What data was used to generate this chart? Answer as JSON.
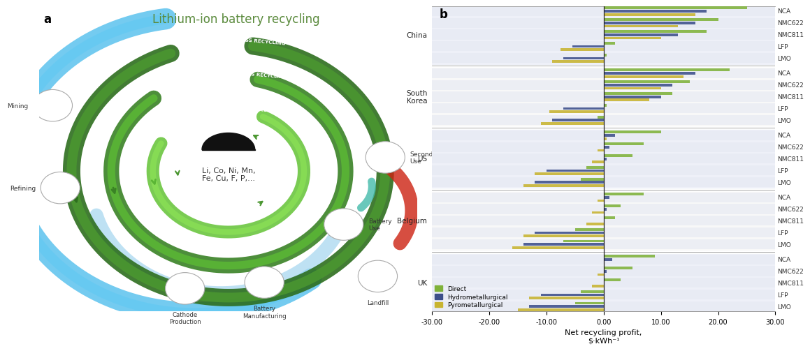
{
  "title_a": "Lithium-ion battery recycling",
  "regions": [
    "China",
    "South\nKorea",
    "US",
    "Belgium",
    "UK"
  ],
  "cathode_types": [
    "NCA",
    "NMC622",
    "NMC811",
    "LFP",
    "LMO"
  ],
  "colors": {
    "direct": "#7fb23a",
    "hydro": "#3d4f8a",
    "pyro": "#c8b430"
  },
  "data": {
    "China": {
      "NCA": {
        "direct": 25.0,
        "hydro": 18.0,
        "pyro": 16.0
      },
      "NMC622": {
        "direct": 20.0,
        "hydro": 16.0,
        "pyro": 13.0
      },
      "NMC811": {
        "direct": 18.0,
        "hydro": 13.0,
        "pyro": 10.0
      },
      "LFP": {
        "direct": 2.0,
        "hydro": -5.5,
        "pyro": -7.5
      },
      "LMO": {
        "direct": 0.5,
        "hydro": -7.0,
        "pyro": -9.0
      }
    },
    "South\nKorea": {
      "NCA": {
        "direct": 22.0,
        "hydro": 16.0,
        "pyro": 14.0
      },
      "NMC622": {
        "direct": 15.0,
        "hydro": 12.0,
        "pyro": 10.0
      },
      "NMC811": {
        "direct": 12.0,
        "hydro": 10.0,
        "pyro": 8.0
      },
      "LFP": {
        "direct": 0.5,
        "hydro": -7.0,
        "pyro": -9.5
      },
      "LMO": {
        "direct": -1.0,
        "hydro": -9.0,
        "pyro": -11.0
      }
    },
    "US": {
      "NCA": {
        "direct": 10.0,
        "hydro": 2.0,
        "pyro": 0.5
      },
      "NMC622": {
        "direct": 7.0,
        "hydro": 1.0,
        "pyro": -1.0
      },
      "NMC811": {
        "direct": 5.0,
        "hydro": 0.5,
        "pyro": -2.0
      },
      "LFP": {
        "direct": -3.0,
        "hydro": -10.0,
        "pyro": -12.0
      },
      "LMO": {
        "direct": -4.0,
        "hydro": -12.0,
        "pyro": -14.0
      }
    },
    "Belgium": {
      "NCA": {
        "direct": 7.0,
        "hydro": 1.0,
        "pyro": -1.0
      },
      "NMC622": {
        "direct": 3.0,
        "hydro": 0.5,
        "pyro": -2.0
      },
      "NMC811": {
        "direct": 2.0,
        "hydro": 0.0,
        "pyro": -3.0
      },
      "LFP": {
        "direct": -5.0,
        "hydro": -12.0,
        "pyro": -14.0
      },
      "LMO": {
        "direct": -7.0,
        "hydro": -14.0,
        "pyro": -16.0
      }
    },
    "UK": {
      "NCA": {
        "direct": 9.0,
        "hydro": 1.5,
        "pyro": 0.2
      },
      "NMC622": {
        "direct": 5.0,
        "hydro": 0.5,
        "pyro": -1.0
      },
      "NMC811": {
        "direct": 3.0,
        "hydro": 0.2,
        "pyro": -2.0
      },
      "LFP": {
        "direct": -4.0,
        "hydro": -11.0,
        "pyro": -13.0
      },
      "LMO": {
        "direct": -5.0,
        "hydro": -13.0,
        "pyro": -15.0
      }
    }
  },
  "xlim": [
    -30,
    30
  ],
  "xticks": [
    -30,
    -20,
    -10,
    0,
    10,
    20,
    30
  ],
  "xlabel": "Net recycling profit,\n$·kWh⁻¹",
  "background_color": "#ffffff"
}
